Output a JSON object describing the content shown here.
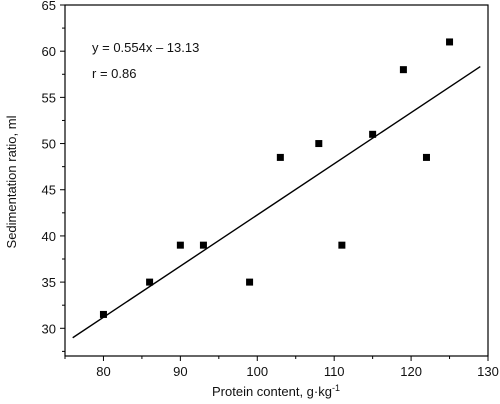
{
  "chart_data": {
    "type": "scatter",
    "xlabel": "Protein content, g·kg",
    "xlabel_superscript": "-1",
    "ylabel": "Sedimentation  ratio, ml",
    "xlim": [
      75,
      130
    ],
    "ylim": [
      27,
      65
    ],
    "xticks": [
      80,
      90,
      100,
      110,
      120,
      130
    ],
    "yticks": [
      30,
      35,
      40,
      45,
      50,
      55,
      60,
      65
    ],
    "series": [
      {
        "marker": "square",
        "points": [
          {
            "x": 80,
            "y": 31.5
          },
          {
            "x": 86,
            "y": 35
          },
          {
            "x": 90,
            "y": 39
          },
          {
            "x": 93,
            "y": 39
          },
          {
            "x": 99,
            "y": 35
          },
          {
            "x": 103,
            "y": 48.5
          },
          {
            "x": 108,
            "y": 50
          },
          {
            "x": 111,
            "y": 39
          },
          {
            "x": 115,
            "y": 51
          },
          {
            "x": 119,
            "y": 58
          },
          {
            "x": 122,
            "y": 48.5
          },
          {
            "x": 125,
            "y": 61
          }
        ]
      }
    ],
    "regression": {
      "slope": 0.554,
      "intercept": -13.13,
      "x_from": 76,
      "x_to": 129
    },
    "annotations": [
      "y = 0.554x – 13.13",
      "r = 0.86"
    ],
    "grid": false,
    "colors": {
      "marker": "#000000",
      "line": "#000000",
      "axis": "#000000"
    }
  }
}
